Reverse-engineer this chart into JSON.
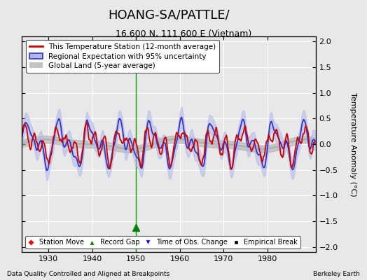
{
  "title": "HOANG-SA/PATTLE/",
  "subtitle": "16.600 N, 111.600 E (Vietnam)",
  "xlabel_bottom": "Data Quality Controlled and Aligned at Breakpoints",
  "xlabel_right": "Berkeley Earth",
  "ylabel": "Temperature Anomaly (°C)",
  "xlim": [
    1924,
    1991
  ],
  "ylim": [
    -2.1,
    2.1
  ],
  "yticks": [
    -2,
    -1.5,
    -1,
    -0.5,
    0,
    0.5,
    1,
    1.5,
    2
  ],
  "xticks": [
    1930,
    1940,
    1950,
    1960,
    1970,
    1980
  ],
  "bg_color": "#e8e8e8",
  "plot_bg_color": "#e8e8e8",
  "grid_color": "#ffffff",
  "station_color": "#cc0000",
  "regional_color": "#3333cc",
  "regional_fill_color": "#b0b8e8",
  "global_color": "#aaaaaa",
  "vertical_line_x": 1950,
  "vertical_line_color": "#009900",
  "record_gap_x": 1950,
  "title_fontsize": 13,
  "subtitle_fontsize": 9,
  "tick_fontsize": 8,
  "legend_fontsize": 7.5
}
